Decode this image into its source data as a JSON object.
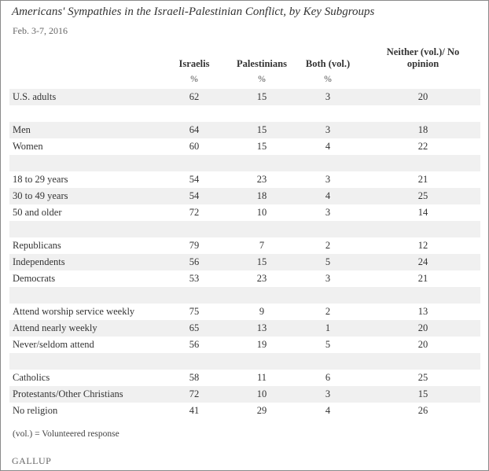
{
  "title": "Americans' Sympathies in the Israeli-Palestinian Conflict, by Key Subgroups",
  "subtitle": "Feb. 3-7, 2016",
  "footnote": "(vol.) = Volunteered response",
  "source_logo": "GALLUP",
  "colors": {
    "shade": "#f0f0f0",
    "text": "#333333",
    "border": "#8a8a8a"
  },
  "chart_data": {
    "type": "table",
    "title": "Americans' Sympathies in the Israeli-Palestinian Conflict, by Key Subgroups",
    "columns": [
      "Israelis",
      "Palestinians",
      "Both (vol.)",
      "Neither (vol.)/ No opinion"
    ],
    "unit_row": [
      "%",
      "%",
      "%",
      ""
    ],
    "rows": [
      {
        "label": "U.S. adults",
        "values": [
          "62",
          "15",
          "3",
          "20"
        ]
      },
      {
        "label": "",
        "values": [
          "",
          "",
          "",
          ""
        ]
      },
      {
        "label": "Men",
        "values": [
          "64",
          "15",
          "3",
          "18"
        ]
      },
      {
        "label": "Women",
        "values": [
          "60",
          "15",
          "4",
          "22"
        ]
      },
      {
        "label": "",
        "values": [
          "",
          "",
          "",
          ""
        ]
      },
      {
        "label": "18 to 29 years",
        "values": [
          "54",
          "23",
          "3",
          "21"
        ]
      },
      {
        "label": "30 to 49 years",
        "values": [
          "54",
          "18",
          "4",
          "25"
        ]
      },
      {
        "label": "50 and older",
        "values": [
          "72",
          "10",
          "3",
          "14"
        ]
      },
      {
        "label": "",
        "values": [
          "",
          "",
          "",
          ""
        ]
      },
      {
        "label": "Republicans",
        "values": [
          "79",
          "7",
          "2",
          "12"
        ]
      },
      {
        "label": "Independents",
        "values": [
          "56",
          "15",
          "5",
          "24"
        ]
      },
      {
        "label": "Democrats",
        "values": [
          "53",
          "23",
          "3",
          "21"
        ]
      },
      {
        "label": "",
        "values": [
          "",
          "",
          "",
          ""
        ]
      },
      {
        "label": "Attend worship service weekly",
        "values": [
          "75",
          "9",
          "2",
          "13"
        ]
      },
      {
        "label": "Attend nearly weekly",
        "values": [
          "65",
          "13",
          "1",
          "20"
        ]
      },
      {
        "label": "Never/seldom attend",
        "values": [
          "56",
          "19",
          "5",
          "20"
        ]
      },
      {
        "label": "",
        "values": [
          "",
          "",
          "",
          ""
        ]
      },
      {
        "label": "Catholics",
        "values": [
          "58",
          "11",
          "6",
          "25"
        ]
      },
      {
        "label": "Protestants/Other Christians",
        "values": [
          "72",
          "10",
          "3",
          "15"
        ]
      },
      {
        "label": "No religion",
        "values": [
          "41",
          "29",
          "4",
          "26"
        ]
      }
    ]
  }
}
